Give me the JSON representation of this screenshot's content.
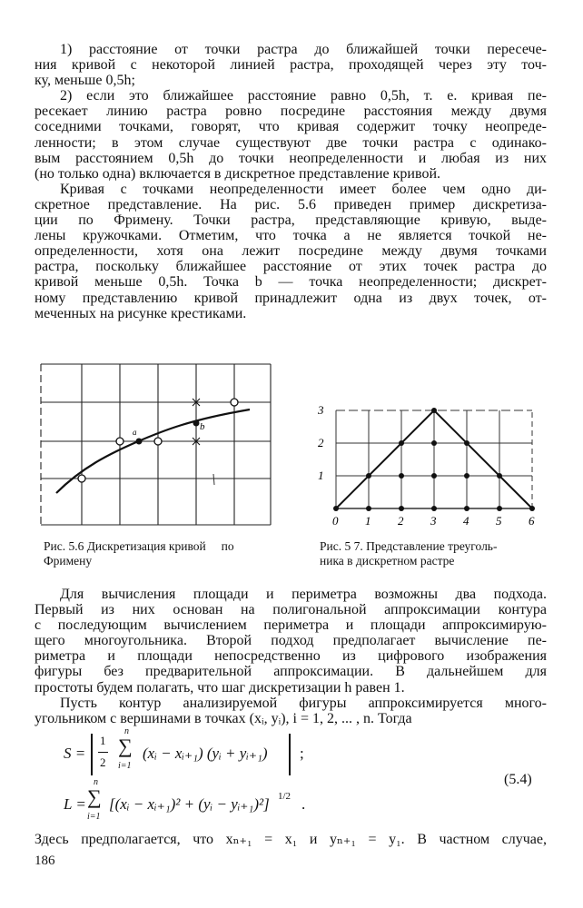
{
  "page": {
    "paragraphs_top": [
      {
        "lines": [
          {
            "t": "1) расстояние от точки растра до ближайшей точки пересече-",
            "indent": true
          },
          {
            "t": "ния кривой с некоторой линией растра, проходящей через эту точ-"
          },
          {
            "t": "ку, меньше 0,5h;",
            "last": true
          },
          {
            "t": "2) если это ближайшее расстояние равно 0,5h, т. е. кривая пе-",
            "indent": true
          },
          {
            "t": "ресекает линию растра ровно посредине расстояния между двумя"
          },
          {
            "t": "соседними точками, говорят, что кривая содержит точку неопреде-"
          },
          {
            "t": "ленности; в этом случае существуют две точки растра с одинако-"
          },
          {
            "t": "вым расстоянием 0,5h до точки неопределенности и любая из них"
          },
          {
            "t": "(но только одна) включается в дискретное представление кривой.",
            "last": true
          },
          {
            "t": "Кривая с точками неопределенности имеет более чем одно ди-",
            "indent": true
          },
          {
            "t": "скретное представление. На рис. 5.6 приведен пример дискретиза-"
          },
          {
            "t": "ции по Фримену. Точки растра, представляющие кривую, выде-"
          },
          {
            "t": "лены кружочками. Отметим, что точка a не является точкой не-"
          },
          {
            "t": "определенности, хотя она лежит посредине между двумя точками"
          },
          {
            "t": "растра, поскольку ближайшее расстояние от этих точек растра до"
          },
          {
            "t": "кривой меньше 0,5h. Точка b — точка неопределенности; дискрет-"
          },
          {
            "t": "ному представлению кривой принадлежит одна из двух точек, от-"
          },
          {
            "t": "меченных на рисунке крестиками.",
            "last": true
          }
        ]
      }
    ],
    "figure_5_6": {
      "caption_line1": "Рис. 5.6 Дискретизация кривой     по",
      "caption_line2": "Фримену",
      "label_a": "a",
      "label_b": "b"
    },
    "figure_5_7": {
      "caption_line1": "Рис. 5 7. Представление треуголь-",
      "caption_line2": "ника в дискретном растре",
      "x_ticks": [
        "0",
        "1",
        "2",
        "3",
        "4",
        "5",
        "6"
      ],
      "y_ticks": [
        "1",
        "2",
        "3"
      ]
    },
    "paragraphs_bottom": [
      {
        "t": "Для вычисления площади и периметра возможны два подхода.",
        "indent": true
      },
      {
        "t": "Первый из них основан на полигональной аппроксимации контура"
      },
      {
        "t": "с последующим вычислением периметра и площади аппроксимирую-"
      },
      {
        "t": "щего многоугольника. Второй подход предполагает вычисление пе-"
      },
      {
        "t": "риметра и площади непосредственно из цифрового  изображения"
      },
      {
        "t": "фигуры без предварительной аппроксимации.  В дальнейшем для"
      },
      {
        "t": "простоты будем полагать, что шаг дискретизации h равен 1.",
        "last": true
      },
      {
        "t": "Пусть контур анализируемой фигуры аппроксимируется много-",
        "indent": true
      },
      {
        "t": "угольником с вершинами в точках (xᵢ, yᵢ), i = 1, 2, ... , n. Тогда",
        "last": true
      }
    ],
    "formula": {
      "s_lhs": "S =",
      "half_num": "1",
      "half_den": "2",
      "sum_top": "n",
      "sum_sign": "∑",
      "sum_bottom": "i=1",
      "s_body": "(xᵢ − xᵢ₊₁) (yᵢ + yᵢ₊₁)",
      "s_end": ";",
      "l_lhs": "L =",
      "l_body": "[(xᵢ − xᵢ₊₁)² + (yᵢ − yᵢ₊₁)²]",
      "l_exp": "1/2",
      "l_end": ".",
      "number": "(5.4)"
    },
    "last_line": "Здесь предполагается, что xₙ₊₁ = x₁ и yₙ₊₁ = y₁. В частном  случае,",
    "page_number": "186"
  }
}
